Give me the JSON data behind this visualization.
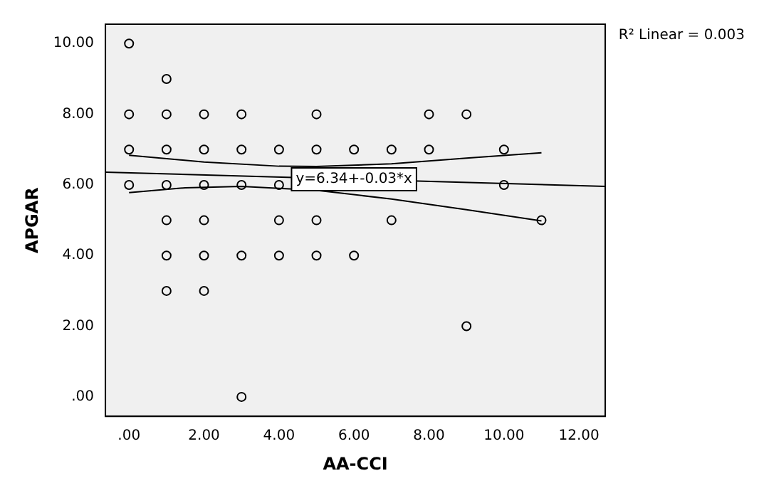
{
  "chart_data": {
    "type": "scatter",
    "xlabel": "AA-CCI",
    "ylabel": "APGAR",
    "xlim": [
      -0.63,
      12.7
    ],
    "ylim": [
      -0.55,
      10.55
    ],
    "xticks": [
      {
        "value": 0,
        "label": ".00"
      },
      {
        "value": 2,
        "label": "2.00"
      },
      {
        "value": 4,
        "label": "4.00"
      },
      {
        "value": 6,
        "label": "6.00"
      },
      {
        "value": 8,
        "label": "8.00"
      },
      {
        "value": 10,
        "label": "10.00"
      },
      {
        "value": 12,
        "label": "12.00"
      }
    ],
    "yticks": [
      {
        "value": 0,
        "label": ".00"
      },
      {
        "value": 2,
        "label": "2.00"
      },
      {
        "value": 4,
        "label": "4.00"
      },
      {
        "value": 6,
        "label": "6.00"
      },
      {
        "value": 8,
        "label": "8.00"
      },
      {
        "value": 10,
        "label": "10.00"
      }
    ],
    "grid": false,
    "legend": false,
    "series": [
      {
        "color": "#000000",
        "marker": "circle",
        "x": [
          0,
          1,
          0,
          1,
          2,
          3,
          5,
          8,
          9,
          0,
          1,
          2,
          3,
          4,
          5,
          6,
          7,
          8,
          10,
          0,
          1,
          2,
          3,
          4,
          10,
          1,
          2,
          4,
          5,
          7,
          11,
          1,
          2,
          3,
          4,
          5,
          6,
          1,
          2,
          9,
          3
        ],
        "values": [
          10,
          9,
          8,
          8,
          8,
          8,
          8,
          8,
          8,
          7,
          7,
          7,
          7,
          7,
          7,
          7,
          7,
          7,
          7,
          6,
          6,
          6,
          6,
          6,
          6,
          5,
          5,
          5,
          5,
          5,
          5,
          4,
          4,
          4,
          4,
          4,
          4,
          3,
          3,
          2,
          0
        ]
      },
      {
        "type": "line",
        "color": "#000000",
        "marker": "none",
        "line_style": "solid",
        "x": [
          -0.63,
          12.7
        ],
        "values": [
          6.36,
          5.96
        ]
      },
      {
        "type": "line",
        "color": "#000000",
        "marker": "none",
        "line_style": "solid",
        "x": [
          0,
          2,
          4,
          5,
          7,
          9,
          11
        ],
        "values": [
          6.84,
          6.65,
          6.53,
          6.52,
          6.6,
          6.76,
          6.91
        ]
      },
      {
        "type": "line",
        "color": "#000000",
        "marker": "none",
        "line_style": "solid",
        "x": [
          0,
          1.5,
          3,
          5,
          7,
          9,
          11
        ],
        "values": [
          5.78,
          5.92,
          5.96,
          5.85,
          5.6,
          5.3,
          4.98
        ]
      }
    ],
    "annotations": [
      {
        "text": "y=6.34+-0.03*x",
        "x": 6,
        "y": 6.16
      },
      "R² Linear = 0.003"
    ]
  }
}
